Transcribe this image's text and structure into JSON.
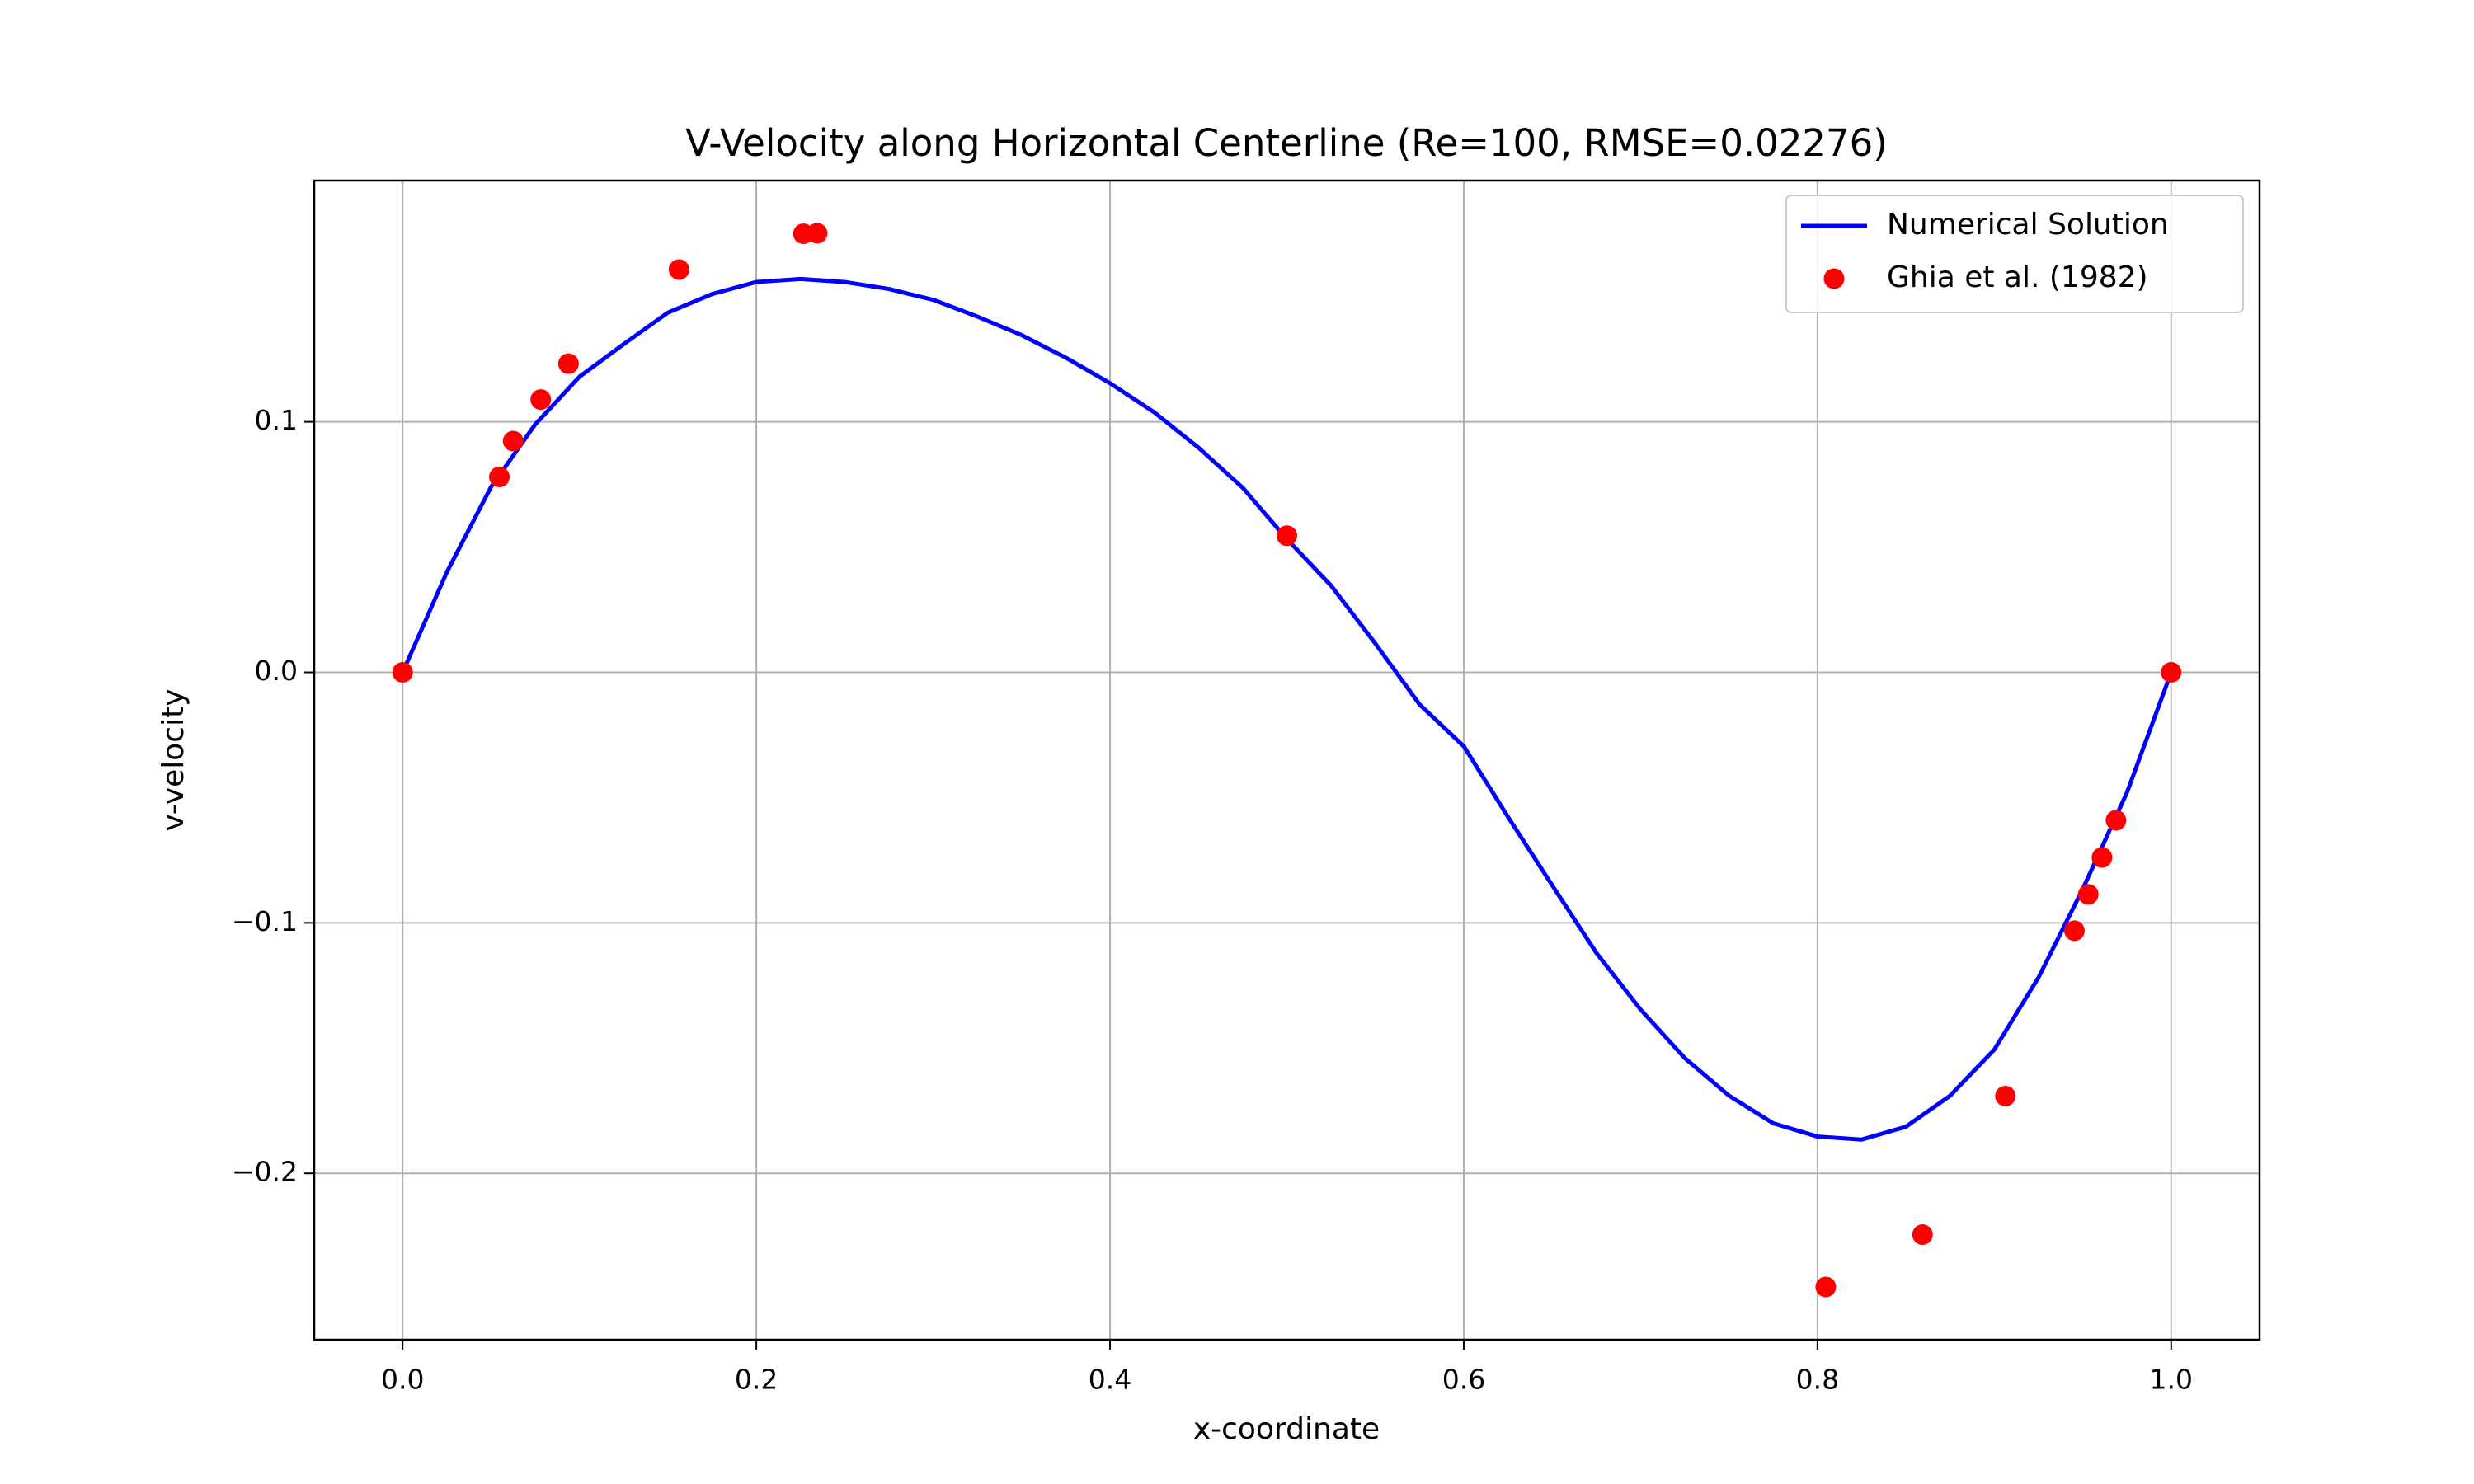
{
  "chart_data": {
    "type": "line",
    "title": "V-Velocity along Horizontal Centerline (Re=100, RMSE=0.02276)",
    "x_label": "x-coordinate",
    "y_label": "v-velocity",
    "xlim": [
      -0.05,
      1.05
    ],
    "ylim": [
      -0.2664,
      0.1963
    ],
    "xticks": [
      {
        "value": 0,
        "label": "0.0"
      },
      {
        "value": 0.2,
        "label": "0.2"
      },
      {
        "value": 0.4,
        "label": "0.4"
      },
      {
        "value": 0.6,
        "label": "0.6"
      },
      {
        "value": 0.8,
        "label": "0.8"
      },
      {
        "value": 1,
        "label": "1.0"
      }
    ],
    "yticks": [
      {
        "value": -0.2,
        "label": "−0.2"
      },
      {
        "value": -0.1,
        "label": "−0.1"
      },
      {
        "value": 0,
        "label": "0.0"
      },
      {
        "value": 0.1,
        "label": "0.1"
      }
    ],
    "grid": true,
    "legend": "upper right",
    "series": [
      {
        "name": "Numerical Solution",
        "color": "#0000ff",
        "style": "line",
        "x": [
          0,
          0.025,
          0.05,
          0.075,
          0.1,
          0.125,
          0.15,
          0.175,
          0.2,
          0.225,
          0.25,
          0.275,
          0.3,
          0.325,
          0.35,
          0.375,
          0.4,
          0.425,
          0.45,
          0.475,
          0.5,
          0.525,
          0.55,
          0.575,
          0.6,
          0.625,
          0.65,
          0.675,
          0.7,
          0.725,
          0.75,
          0.775,
          0.8,
          0.825,
          0.85,
          0.875,
          0.9,
          0.925,
          0.95,
          0.975,
          1
        ],
        "values": [
          0,
          0.04,
          0.074,
          0.099,
          0.118,
          0.131,
          0.1436,
          0.151,
          0.1558,
          0.157,
          0.1558,
          0.153,
          0.1487,
          0.142,
          0.1346,
          0.1256,
          0.1154,
          0.1038,
          0.0897,
          0.0737,
          0.0532,
          0.0346,
          0.0115,
          -0.0128,
          -0.0295,
          -0.0577,
          -0.085,
          -0.112,
          -0.1346,
          -0.154,
          -0.169,
          -0.18,
          -0.1853,
          -0.1865,
          -0.1814,
          -0.169,
          -0.1506,
          -0.1218,
          -0.0865,
          -0.048,
          0
        ]
      },
      {
        "name": "Ghia et al. (1982)",
        "color": "#ff0000",
        "style": "points",
        "x": [
          0,
          0.0547,
          0.0625,
          0.0781,
          0.0938,
          0.1563,
          0.2266,
          0.2344,
          0.5,
          0.8047,
          0.8594,
          0.9063,
          0.9453,
          0.9531,
          0.9609,
          0.9688,
          1
        ],
        "values": [
          0,
          0.078,
          0.0923,
          0.1089,
          0.1232,
          0.16077,
          0.17507,
          0.17527,
          0.05454,
          -0.24533,
          -0.22445,
          -0.16914,
          -0.10313,
          -0.08864,
          -0.07391,
          -0.05906,
          0
        ]
      }
    ]
  }
}
